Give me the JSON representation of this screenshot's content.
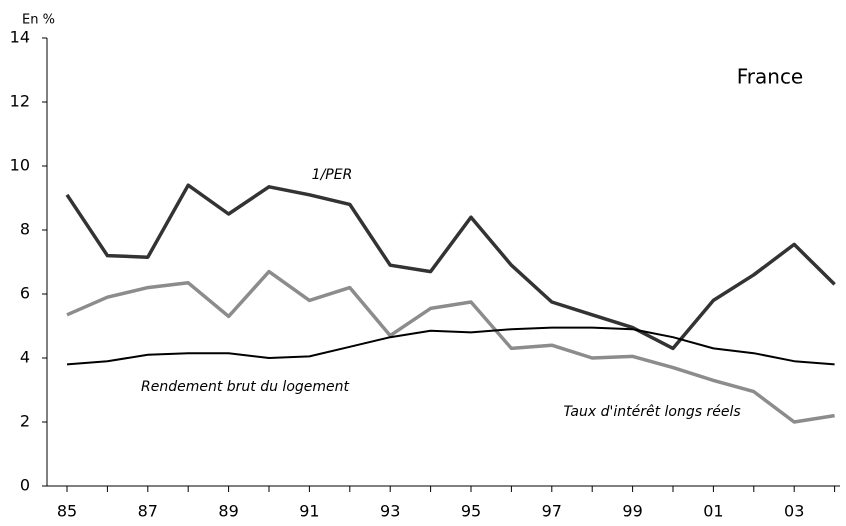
{
  "chart_data": {
    "type": "line",
    "axis_label": "En %",
    "annotation": "France",
    "categories": [
      "85",
      null,
      "87",
      null,
      "89",
      null,
      "91",
      null,
      "93",
      null,
      "95",
      null,
      "97",
      null,
      "99",
      null,
      "01",
      null,
      "03",
      null
    ],
    "series": [
      {
        "name": "1/PER",
        "color": "#333333",
        "width": 3.5,
        "values": [
          9.1,
          7.2,
          7.15,
          9.4,
          8.5,
          9.35,
          9.1,
          8.8,
          6.9,
          6.7,
          8.4,
          6.9,
          5.75,
          5.35,
          4.95,
          4.3,
          5.8,
          6.6,
          7.55,
          6.3
        ]
      },
      {
        "name": "Taux d'intérêt longs réels",
        "color": "#8c8c8c",
        "width": 3.5,
        "values": [
          5.35,
          5.9,
          6.2,
          6.35,
          5.3,
          6.7,
          5.8,
          6.2,
          4.7,
          5.55,
          5.75,
          4.3,
          4.4,
          4.0,
          4.05,
          3.7,
          3.3,
          2.95,
          2.0,
          2.2
        ]
      },
      {
        "name": "Rendement brut du logement",
        "color": "#000000",
        "width": 2,
        "values": [
          3.8,
          3.9,
          4.1,
          4.15,
          4.15,
          4.0,
          4.05,
          4.35,
          4.65,
          4.85,
          4.8,
          4.9,
          4.95,
          4.95,
          4.9,
          4.65,
          4.3,
          4.15,
          3.9,
          3.8
        ]
      }
    ],
    "ylim": [
      0,
      14
    ],
    "yticks": [
      0,
      2,
      4,
      6,
      8,
      10,
      12,
      14
    ],
    "grid": false
  }
}
